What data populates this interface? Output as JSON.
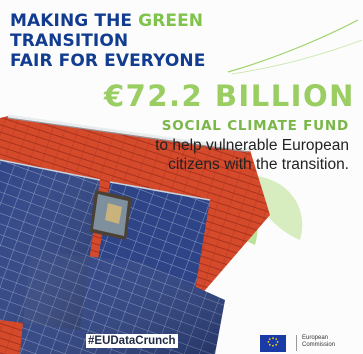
{
  "headline": {
    "line1_pre": "MAKING THE ",
    "line1_green": "GREEN",
    "line1_post": " TRANSITION",
    "line2": "FAIR FOR EVERYONE"
  },
  "amount": "€72.2 BILLION",
  "fund_name": "SOCIAL CLIMATE FUND",
  "subtitle": "to help vulnerable European citizens with the transition.",
  "hashtag": "#EUDataCrunch",
  "logo": {
    "line1": "European",
    "line2": "Commission"
  },
  "colors": {
    "headline_blue": "#123c8f",
    "accent_green": "#7fc34a",
    "amount_green": "#9acd62",
    "roof_red": "#d9442a",
    "solar_blue": "#2b3f7a",
    "eu_blue": "#1a3aa6"
  }
}
